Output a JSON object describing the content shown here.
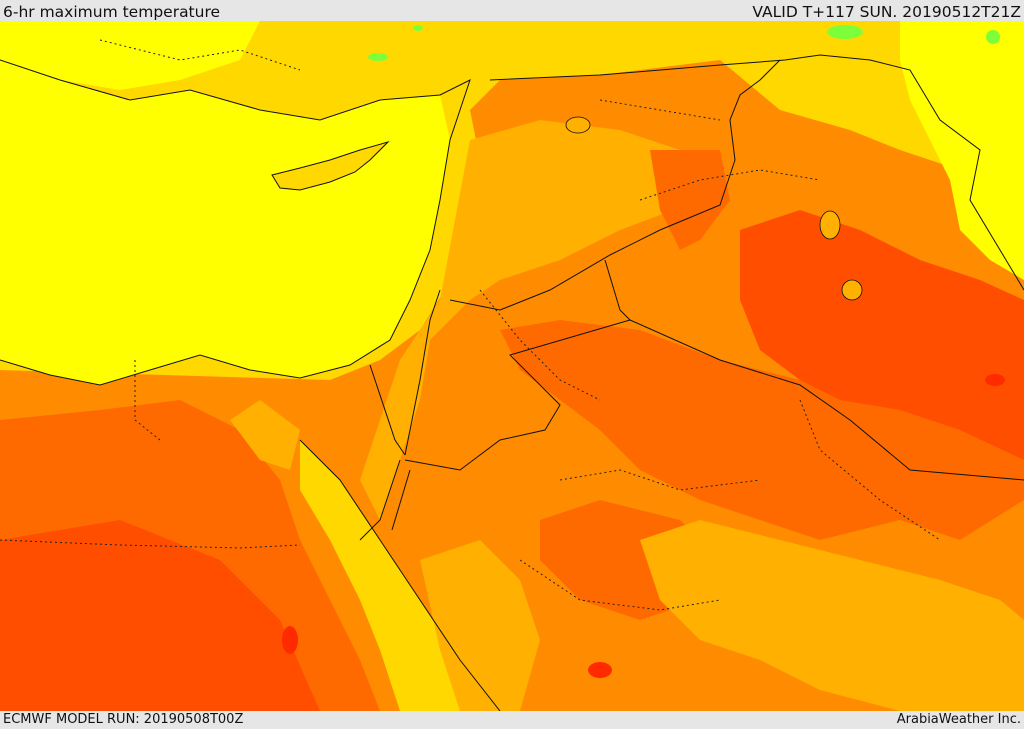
{
  "header": {
    "title": "6-hr maximum temperature",
    "valid": "VALID T+117 SUN. 20190512T21Z"
  },
  "footer": {
    "model_run": "ECMWF MODEL RUN: 20190508T00Z",
    "credit": "ArabiaWeather Inc."
  },
  "map": {
    "layer": "6-hr maximum temperature",
    "palette": {
      "sea": "#ffff00",
      "cool": "#ffd800",
      "warm": "#ffb000",
      "hot": "#ff8c00",
      "hotter": "#ff6a00",
      "hottest": "#ff4e00",
      "extreme": "#ff2a00",
      "green": "#7cff3a",
      "border": "#111111"
    }
  }
}
